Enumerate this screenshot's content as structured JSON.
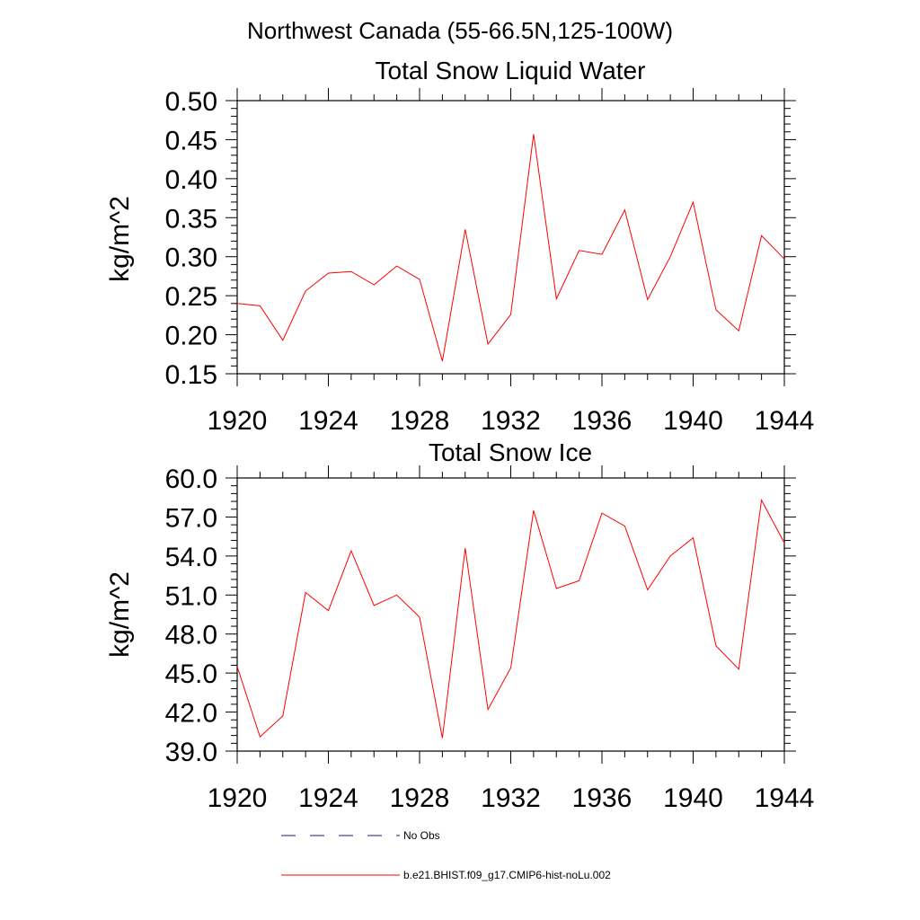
{
  "figure": {
    "title": "Northwest Canada (55-66.5N,125-100W)"
  },
  "chart_data": [
    {
      "type": "line",
      "title": "Total Snow Liquid Water",
      "ylabel": "kg/m^2",
      "xlabel": "",
      "xlim": [
        1920,
        1944
      ],
      "ylim": [
        0.15,
        0.5
      ],
      "x_ticks": [
        "1920",
        "1924",
        "1928",
        "1932",
        "1936",
        "1940",
        "1944"
      ],
      "y_ticks": [
        "0.15",
        "0.20",
        "0.25",
        "0.30",
        "0.35",
        "0.40",
        "0.45",
        "0.50"
      ],
      "grid": false,
      "x": [
        1920,
        1921,
        1922,
        1923,
        1924,
        1925,
        1926,
        1927,
        1928,
        1929,
        1930,
        1931,
        1932,
        1933,
        1934,
        1935,
        1936,
        1937,
        1938,
        1939,
        1940,
        1941,
        1942,
        1943,
        1944
      ],
      "series": [
        {
          "name": "b.e21.BHIST.f09_g17.CMIP6-hist-noLu.002",
          "color": "#ff0000",
          "values": [
            0.24,
            0.237,
            0.193,
            0.256,
            0.279,
            0.281,
            0.264,
            0.288,
            0.271,
            0.166,
            0.335,
            0.188,
            0.226,
            0.457,
            0.246,
            0.308,
            0.303,
            0.36,
            0.245,
            0.3,
            0.37,
            0.232,
            0.205,
            0.327,
            0.297
          ]
        }
      ]
    },
    {
      "type": "line",
      "title": "Total Snow Ice",
      "ylabel": "kg/m^2",
      "xlabel": "",
      "xlim": [
        1920,
        1944
      ],
      "ylim": [
        39.0,
        60.0
      ],
      "x_ticks": [
        "1920",
        "1924",
        "1928",
        "1932",
        "1936",
        "1940",
        "1944"
      ],
      "y_ticks": [
        "39.0",
        "42.0",
        "45.0",
        "48.0",
        "51.0",
        "54.0",
        "57.0",
        "60.0"
      ],
      "grid": false,
      "x": [
        1920,
        1921,
        1922,
        1923,
        1924,
        1925,
        1926,
        1927,
        1928,
        1929,
        1930,
        1931,
        1932,
        1933,
        1934,
        1935,
        1936,
        1937,
        1938,
        1939,
        1940,
        1941,
        1942,
        1943,
        1944
      ],
      "series": [
        {
          "name": "b.e21.BHIST.f09_g17.CMIP6-hist-noLu.002",
          "color": "#ff0000",
          "values": [
            45.5,
            40.1,
            41.7,
            51.2,
            49.8,
            54.4,
            50.2,
            51.0,
            49.3,
            40.0,
            54.6,
            42.2,
            45.4,
            57.5,
            51.5,
            52.1,
            57.3,
            56.3,
            51.4,
            54.0,
            55.4,
            47.1,
            45.3,
            58.3,
            55.0
          ]
        }
      ]
    }
  ],
  "legend": {
    "placement": "bottom",
    "items": [
      {
        "label": "No Obs",
        "color": "#1a1a6e",
        "style": "dashed"
      },
      {
        "label": "b.e21.BHIST.f09_g17.CMIP6-hist-noLu.002",
        "color": "#ff0000",
        "style": "solid"
      }
    ]
  }
}
